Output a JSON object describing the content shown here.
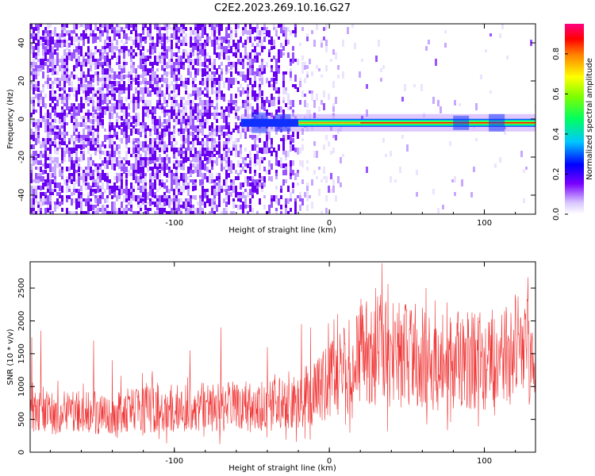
{
  "title": "C2E2.2023.269.10.16.G27",
  "colors": {
    "snr_line": "#f03535",
    "spectrogram_noise": "#6a00f0",
    "frame": "#000000"
  },
  "chart_data": [
    {
      "type": "heatmap",
      "name": "spectrogram",
      "xlabel": "Height of straight line (km)",
      "ylabel": "Frequency (Hz)",
      "xlim": [
        -193,
        133
      ],
      "ylim": [
        -50,
        50
      ],
      "x_ticks": [
        -100,
        0,
        100
      ],
      "x_tick_labels": [
        "-100",
        "0",
        "100"
      ],
      "y_ticks": [
        -40,
        -20,
        0,
        20,
        40
      ],
      "y_tick_labels": [
        "-40",
        "-20",
        "0",
        "20",
        "40"
      ],
      "signal_band_hz": [
        -2,
        2
      ],
      "signal_onset_km": -57,
      "colorbar": {
        "label": "Normalized spectral amplitude",
        "range": [
          0.0,
          0.95
        ],
        "ticks": [
          0.0,
          0.2,
          0.4,
          0.6,
          0.8
        ],
        "tick_labels": [
          "0.0",
          "0.2",
          "0.4",
          "0.6",
          "0.8"
        ],
        "colormap": "rainbow (white-violet-blue-cyan-green-yellow-red-pink)"
      }
    },
    {
      "type": "line",
      "name": "snr",
      "xlabel": "Height of straight line (km)",
      "ylabel": "SNR (10 * v/v)",
      "xlim": [
        -193,
        133
      ],
      "ylim": [
        0,
        2900
      ],
      "x_ticks": [
        -100,
        0,
        100
      ],
      "x_tick_labels": [
        "-100",
        "0",
        "100"
      ],
      "y_ticks": [
        0,
        500,
        1000,
        1500,
        2000,
        2500
      ],
      "y_tick_labels": [
        "0",
        "500",
        "1000",
        "1500",
        "2000",
        "2500"
      ],
      "trend": {
        "x": [
          -193,
          -150,
          -100,
          -60,
          -40,
          -25,
          -15,
          -5,
          5,
          15,
          20,
          40,
          60,
          80,
          100,
          120,
          133
        ],
        "y": [
          600,
          600,
          680,
          700,
          720,
          740,
          850,
          1000,
          1150,
          1350,
          1450,
          1500,
          1450,
          1380,
          1400,
          1500,
          1600
        ]
      },
      "spikes": [
        {
          "x": -192,
          "y": 1750
        },
        {
          "x": -186,
          "y": 1850
        },
        {
          "x": -152,
          "y": 1700
        },
        {
          "x": -140,
          "y": 1400
        },
        {
          "x": -90,
          "y": 1550
        },
        {
          "x": -70,
          "y": 1900
        },
        {
          "x": -40,
          "y": 1600
        },
        {
          "x": -18,
          "y": 1950
        },
        {
          "x": -12,
          "y": 1900
        },
        {
          "x": 24,
          "y": 2300
        },
        {
          "x": 30,
          "y": 2500
        },
        {
          "x": 34,
          "y": 2880
        },
        {
          "x": 48,
          "y": 2100
        },
        {
          "x": 60,
          "y": 2200
        },
        {
          "x": 78,
          "y": 2050
        },
        {
          "x": 120,
          "y": 2400
        },
        {
          "x": 128,
          "y": 2300
        }
      ]
    }
  ]
}
